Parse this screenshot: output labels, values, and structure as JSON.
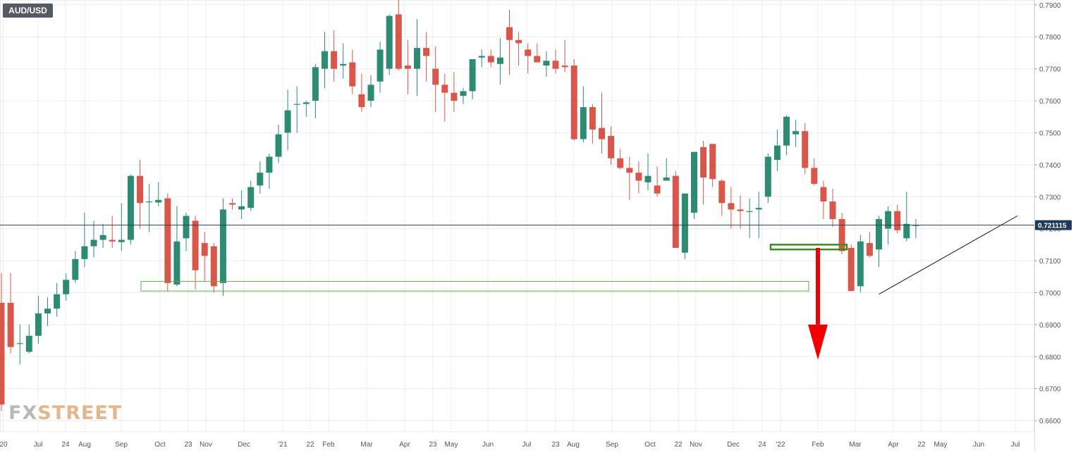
{
  "symbol_label": "AUD/USD",
  "watermark": {
    "part1": "FX",
    "part2": "STREET"
  },
  "colors": {
    "up": "#2e8b73",
    "down": "#d9574a",
    "grid": "#e9ecf1",
    "price_line": "#2b3e52",
    "zone": "#5fae36",
    "arrow": "#f00000",
    "axis_text": "#555555"
  },
  "chart_data": {
    "type": "candlestick",
    "title": "AUD/USD",
    "xlabel": "",
    "ylabel": "",
    "ylim": [
      0.6565,
      0.7915
    ],
    "y_ticks": [
      0.79,
      0.78,
      0.77,
      0.76,
      0.75,
      0.74,
      0.73,
      0.72,
      0.71,
      0.7,
      0.69,
      0.68,
      0.67,
      0.66
    ],
    "y_tick_labels": [
      "0.7900",
      "0.7800",
      "0.7700",
      "0.7600",
      "0.7500",
      "0.7400",
      "0.7300",
      "0.7200",
      "0.7100",
      "0.7000",
      "0.6900",
      "0.6800",
      "0.6700",
      "0.6600"
    ],
    "x_tick_labels": [
      "'20",
      "Jul",
      "24",
      "Aug",
      "Sep",
      "Oct",
      "23",
      "Nov",
      "Dec",
      "'21",
      "22",
      "Feb",
      "Mar",
      "Apr",
      "23",
      "May",
      "Jun",
      "Jul",
      "23",
      "Aug",
      "Sep",
      "Oct",
      "22",
      "Nov",
      "Dec",
      "24",
      "'22",
      "Feb",
      "Mar",
      "Apr",
      "22",
      "May",
      "Jun",
      "Jul"
    ],
    "current_price": 0.721115,
    "current_price_label": "0.721115",
    "grid": true,
    "series": [
      {
        "values": [
          [
            0.6968,
            0.7062,
            0.663,
            0.665
          ],
          [
            0.6968,
            0.7062,
            0.681,
            0.683
          ],
          [
            0.684,
            0.69,
            0.6775,
            0.6842
          ],
          [
            0.6815,
            0.69,
            0.681,
            0.6865
          ],
          [
            0.6865,
            0.699,
            0.684,
            0.6935
          ],
          [
            0.6935,
            0.6985,
            0.6895,
            0.695
          ],
          [
            0.695,
            0.703,
            0.6925,
            0.6995
          ],
          [
            0.6995,
            0.706,
            0.6975,
            0.704
          ],
          [
            0.704,
            0.713,
            0.703,
            0.7105
          ],
          [
            0.7105,
            0.725,
            0.708,
            0.7145
          ],
          [
            0.7145,
            0.7225,
            0.711,
            0.7165
          ],
          [
            0.7165,
            0.7215,
            0.714,
            0.718
          ],
          [
            0.7165,
            0.724,
            0.714,
            0.716
          ],
          [
            0.7158,
            0.728,
            0.713,
            0.7165
          ],
          [
            0.7165,
            0.737,
            0.715,
            0.7365
          ],
          [
            0.7365,
            0.7415,
            0.72,
            0.728
          ],
          [
            0.7285,
            0.734,
            0.719,
            0.7285
          ],
          [
            0.7282,
            0.7345,
            0.727,
            0.729
          ],
          [
            0.7295,
            0.731,
            0.7005,
            0.703
          ],
          [
            0.7025,
            0.727,
            0.702,
            0.716
          ],
          [
            0.717,
            0.725,
            0.713,
            0.724
          ],
          [
            0.7225,
            0.724,
            0.701,
            0.707
          ],
          [
            0.7155,
            0.719,
            0.7035,
            0.7115
          ],
          [
            0.7145,
            0.7155,
            0.7,
            0.702
          ],
          [
            0.703,
            0.7295,
            0.699,
            0.726
          ],
          [
            0.728,
            0.7295,
            0.726,
            0.7275
          ],
          [
            0.726,
            0.732,
            0.723,
            0.727
          ],
          [
            0.7265,
            0.735,
            0.7255,
            0.733
          ],
          [
            0.7335,
            0.741,
            0.731,
            0.7375
          ],
          [
            0.7375,
            0.7435,
            0.7325,
            0.7425
          ],
          [
            0.7425,
            0.7525,
            0.7405,
            0.7495
          ],
          [
            0.75,
            0.7635,
            0.7445,
            0.757
          ],
          [
            0.759,
            0.7645,
            0.75,
            0.759
          ],
          [
            0.759,
            0.76,
            0.755,
            0.7595
          ],
          [
            0.76,
            0.7715,
            0.7545,
            0.7705
          ],
          [
            0.77,
            0.7815,
            0.764,
            0.7755
          ],
          [
            0.7755,
            0.782,
            0.766,
            0.77
          ],
          [
            0.771,
            0.778,
            0.767,
            0.7715
          ],
          [
            0.772,
            0.776,
            0.762,
            0.7645
          ],
          [
            0.762,
            0.7685,
            0.7565,
            0.758
          ],
          [
            0.76,
            0.768,
            0.758,
            0.765
          ],
          [
            0.766,
            0.7785,
            0.7625,
            0.776
          ],
          [
            0.77,
            0.787,
            0.768,
            0.7865
          ],
          [
            0.787,
            0.7915,
            0.7695,
            0.77
          ],
          [
            0.771,
            0.779,
            0.762,
            0.77
          ],
          [
            0.77,
            0.7855,
            0.7615,
            0.7765
          ],
          [
            0.7765,
            0.7815,
            0.766,
            0.774
          ],
          [
            0.77,
            0.777,
            0.7565,
            0.765
          ],
          [
            0.765,
            0.7685,
            0.7535,
            0.7625
          ],
          [
            0.7625,
            0.769,
            0.7565,
            0.76
          ],
          [
            0.7615,
            0.764,
            0.759,
            0.763
          ],
          [
            0.763,
            0.7725,
            0.7605,
            0.773
          ],
          [
            0.7735,
            0.776,
            0.7705,
            0.774
          ],
          [
            0.774,
            0.776,
            0.7705,
            0.772
          ],
          [
            0.7715,
            0.7795,
            0.765,
            0.7735
          ],
          [
            0.783,
            0.7885,
            0.768,
            0.779
          ],
          [
            0.779,
            0.7815,
            0.771,
            0.778
          ],
          [
            0.776,
            0.778,
            0.7685,
            0.774
          ],
          [
            0.774,
            0.778,
            0.772,
            0.772
          ],
          [
            0.771,
            0.7755,
            0.7675,
            0.7725
          ],
          [
            0.7725,
            0.776,
            0.7685,
            0.77
          ],
          [
            0.771,
            0.779,
            0.769,
            0.7705
          ],
          [
            0.771,
            0.773,
            0.7475,
            0.748
          ],
          [
            0.748,
            0.7645,
            0.747,
            0.758
          ],
          [
            0.758,
            0.759,
            0.7465,
            0.751
          ],
          [
            0.7515,
            0.7625,
            0.7435,
            0.748
          ],
          [
            0.749,
            0.752,
            0.74,
            0.742
          ],
          [
            0.742,
            0.745,
            0.7385,
            0.739
          ],
          [
            0.739,
            0.7425,
            0.729,
            0.7375
          ],
          [
            0.7375,
            0.741,
            0.731,
            0.735
          ],
          [
            0.7345,
            0.7435,
            0.732,
            0.7365
          ],
          [
            0.7335,
            0.7395,
            0.73,
            0.731
          ],
          [
            0.735,
            0.742,
            0.735,
            0.736
          ],
          [
            0.7365,
            0.738,
            0.714,
            0.714
          ],
          [
            0.7125,
            0.73,
            0.7105,
            0.731
          ],
          [
            0.725,
            0.7395,
            0.723,
            0.744
          ],
          [
            0.7455,
            0.7475,
            0.7275,
            0.736
          ],
          [
            0.7465,
            0.746,
            0.733,
            0.7355
          ],
          [
            0.735,
            0.7355,
            0.724,
            0.728
          ],
          [
            0.728,
            0.733,
            0.72,
            0.726
          ],
          [
            0.726,
            0.7305,
            0.72,
            0.7255
          ],
          [
            0.7255,
            0.7295,
            0.717,
            0.7255
          ],
          [
            0.726,
            0.7315,
            0.717,
            0.7265
          ],
          [
            0.73,
            0.7435,
            0.728,
            0.7425
          ],
          [
            0.7415,
            0.751,
            0.738,
            0.746
          ],
          [
            0.746,
            0.7555,
            0.743,
            0.755
          ],
          [
            0.7495,
            0.754,
            0.7455,
            0.7505
          ],
          [
            0.7505,
            0.753,
            0.737,
            0.739
          ],
          [
            0.739,
            0.742,
            0.7335,
            0.734
          ],
          [
            0.733,
            0.735,
            0.723,
            0.7285
          ],
          [
            0.7285,
            0.7325,
            0.7205,
            0.723
          ],
          [
            0.723,
            0.725,
            0.712,
            0.713
          ],
          [
            0.714,
            0.715,
            0.7015,
            0.7005
          ],
          [
            0.702,
            0.718,
            0.7,
            0.716
          ],
          [
            0.7155,
            0.719,
            0.711,
            0.7115
          ],
          [
            0.7135,
            0.724,
            0.708,
            0.723
          ],
          [
            0.72,
            0.727,
            0.715,
            0.7255
          ],
          [
            0.7255,
            0.7275,
            0.7185,
            0.7195
          ],
          [
            0.717,
            0.7315,
            0.716,
            0.7215
          ],
          [
            0.7211,
            0.723,
            0.717,
            0.7211
          ]
        ]
      }
    ],
    "annotations": {
      "support_zone_lower": [
        0.7005,
        0.7035
      ],
      "support_zone_upper": [
        0.7135,
        0.715
      ],
      "trendline": [
        [
          95,
          0.6995
        ],
        [
          110,
          0.724
        ]
      ],
      "arrow": {
        "from": 0.714,
        "to": 0.679
      }
    }
  }
}
